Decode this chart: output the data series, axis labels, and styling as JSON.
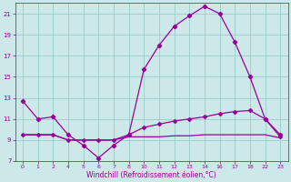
{
  "xlabel": "Windchill (Refroidissement éolien,°C)",
  "background_color": "#cce8e8",
  "grid_color": "#99cccc",
  "line_color": "#990099",
  "ylim": [
    7,
    22
  ],
  "yticks": [
    7,
    9,
    11,
    13,
    15,
    17,
    19,
    21
  ],
  "hour_labels": [
    "0",
    "1",
    "2",
    "4",
    "5",
    "6",
    "7",
    "8",
    "10",
    "11",
    "12",
    "13",
    "14",
    "16",
    "17",
    "18",
    "22",
    "23"
  ],
  "line1_y": [
    12.7,
    11.0,
    11.2,
    9.5,
    8.5,
    7.3,
    8.5,
    9.5,
    15.7,
    18.0,
    19.8,
    20.8,
    21.7,
    21.0,
    18.3,
    15.0,
    11.0,
    9.5
  ],
  "line2_y": [
    9.5,
    9.5,
    9.5,
    9.0,
    9.0,
    9.0,
    9.0,
    9.5,
    10.2,
    10.5,
    10.8,
    11.0,
    11.2,
    11.5,
    11.7,
    11.8,
    11.0,
    9.3
  ],
  "line3_y": [
    9.5,
    9.5,
    9.5,
    9.0,
    9.0,
    9.0,
    9.0,
    9.3,
    9.3,
    9.3,
    9.4,
    9.4,
    9.5,
    9.5,
    9.5,
    9.5,
    9.5,
    9.2
  ]
}
